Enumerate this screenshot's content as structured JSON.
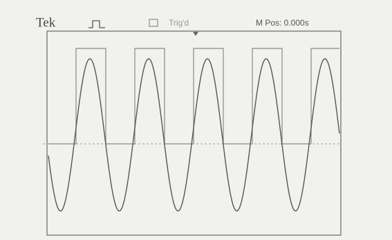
{
  "header": {
    "brand": "Tek",
    "trigger_status": "Trig'd",
    "position": "M Pos: 0.000s"
  }
}
